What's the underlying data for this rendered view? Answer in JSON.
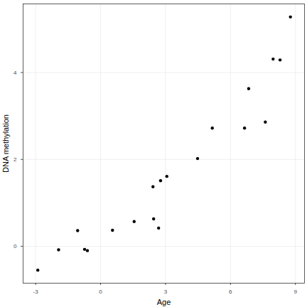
{
  "chart_data": {
    "type": "scatter",
    "x_label": "Age",
    "y_label": "DNA methylation",
    "x": [
      -2.9,
      -1.94,
      -1.06,
      -0.74,
      -0.61,
      0.55,
      1.55,
      2.42,
      2.45,
      2.68,
      2.77,
      3.06,
      4.48,
      5.16,
      6.65,
      6.84,
      7.61,
      7.97,
      8.29,
      8.77
    ],
    "values": [
      -0.55,
      -0.08,
      0.36,
      -0.07,
      -0.1,
      0.37,
      0.57,
      1.37,
      0.63,
      0.42,
      1.51,
      1.61,
      2.02,
      2.72,
      2.72,
      3.63,
      2.86,
      4.31,
      4.29,
      5.28
    ],
    "xlim": [
      -3.58,
      9.42
    ],
    "ylim": [
      -0.85,
      5.58
    ],
    "xticks": [
      -3,
      0,
      3,
      6,
      9
    ],
    "yticks": [
      0,
      2,
      4
    ],
    "grid": true,
    "color": "#000000",
    "marker": "circle"
  }
}
